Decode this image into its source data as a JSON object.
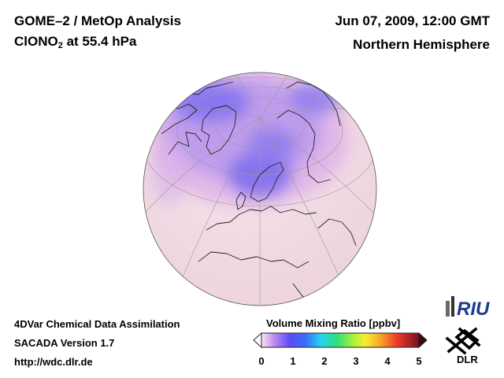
{
  "header": {
    "title": "GOME–2 / MetOp Analysis",
    "species_main": "ClONO",
    "species_sub": "2",
    "species_level": " at 55.4 hPa",
    "date": "Jun 07, 2009, 12:00 GMT",
    "region": "Northern Hemisphere"
  },
  "footer": {
    "line1": "4DVar Chemical Data Assimilation",
    "line2": "SACADA Version 1.7",
    "line3": "http://wdc.dlr.de"
  },
  "colorbar": {
    "title": "Volume Mixing Ratio [ppbv]",
    "ticks": [
      "0",
      "1",
      "2",
      "3",
      "4",
      "5"
    ],
    "min": 0,
    "max": 5
  },
  "logos": {
    "riu": "RIU",
    "dlr": "DLR"
  },
  "colors": {
    "low": "#f4dde4",
    "mid": "#d9a0e6",
    "high": "#7f73f0",
    "land_outline": "#222222",
    "grid": "#9a9a9a"
  }
}
